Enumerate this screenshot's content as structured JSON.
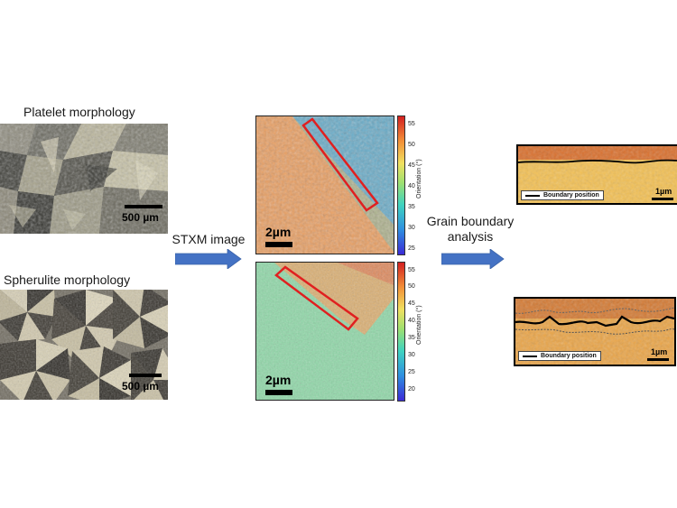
{
  "left": {
    "platelet_title": "Platelet morphology",
    "platelet_scale": "500 µm",
    "spherulite_title": "Spherulite morphology",
    "spherulite_scale": "500 µm"
  },
  "arrows": {
    "stxm_label": "STXM image",
    "gb_label_line1": "Grain boundary",
    "gb_label_line2": "analysis"
  },
  "maps": {
    "top": {
      "scale": "2µm",
      "colorbar_label": "Orientation (°)",
      "ticks": [
        "55",
        "50",
        "45",
        "40",
        "35",
        "30",
        "25"
      ]
    },
    "bottom": {
      "scale": "2µm",
      "colorbar_label": "Orientation (°)",
      "ticks": [
        "55",
        "50",
        "45",
        "40",
        "35",
        "30",
        "25",
        "20"
      ]
    }
  },
  "right": {
    "top": {
      "legend": "Boundary position",
      "scale": "1µm"
    },
    "bottom": {
      "legend": "Boundary position",
      "scale": "1µm"
    }
  },
  "colors": {
    "arrow": "#4472c4",
    "roi_box": "#e02020"
  }
}
